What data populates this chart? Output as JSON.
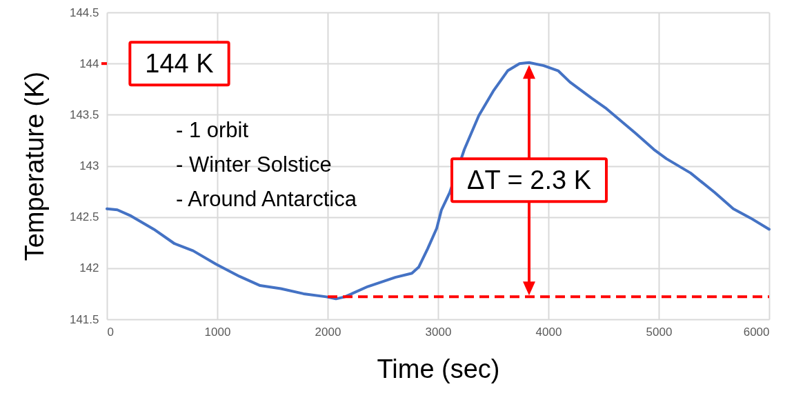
{
  "chart_data": {
    "type": "line",
    "xlabel": "Time (sec)",
    "ylabel": "Temperature (K)",
    "xlim": [
      0,
      6000
    ],
    "ylim": [
      141.5,
      144.5
    ],
    "xticks": [
      0,
      1000,
      2000,
      3000,
      4000,
      5000,
      6000
    ],
    "yticks": [
      141.5,
      142,
      142.5,
      143,
      143.5,
      144,
      144.5
    ],
    "grid": true,
    "marker": "none",
    "series": [
      {
        "color": "#4472c4",
        "x": [
          0,
          94,
          219,
          425,
          612,
          781,
          988,
          1200,
          1388,
          1575,
          1781,
          1988,
          2075,
          2156,
          2363,
          2613,
          2763,
          2825,
          2906,
          2988,
          3031,
          3106,
          3238,
          3369,
          3500,
          3631,
          3738,
          3825,
          3956,
          4088,
          4194,
          4394,
          4525,
          4788,
          4956,
          5069,
          5288,
          5506,
          5675,
          5831,
          6000
        ],
        "values": [
          142.58,
          142.57,
          142.51,
          142.38,
          142.24,
          142.17,
          142.04,
          141.92,
          141.83,
          141.8,
          141.75,
          141.72,
          141.7,
          141.72,
          141.82,
          141.91,
          141.95,
          142.01,
          142.19,
          142.39,
          142.57,
          142.74,
          143.16,
          143.49,
          143.73,
          143.93,
          144.0,
          144.01,
          143.98,
          143.93,
          143.82,
          143.66,
          143.56,
          143.32,
          143.16,
          143.07,
          142.93,
          142.74,
          142.58,
          142.49,
          142.38
        ]
      },
      {
        "color": "#ff0000",
        "line_style": "dashed",
        "x": [
          2000,
          6000
        ],
        "values": [
          141.72,
          141.72
        ]
      }
    ],
    "ref_lines": [
      {
        "axis": "y",
        "value": 144,
        "label": "144 K",
        "color": "#ff0000"
      }
    ],
    "annotations": [
      "- 1 orbit",
      "- Winter Solstice",
      "- Around Antarctica",
      "ΔT = 2.3 K"
    ]
  }
}
